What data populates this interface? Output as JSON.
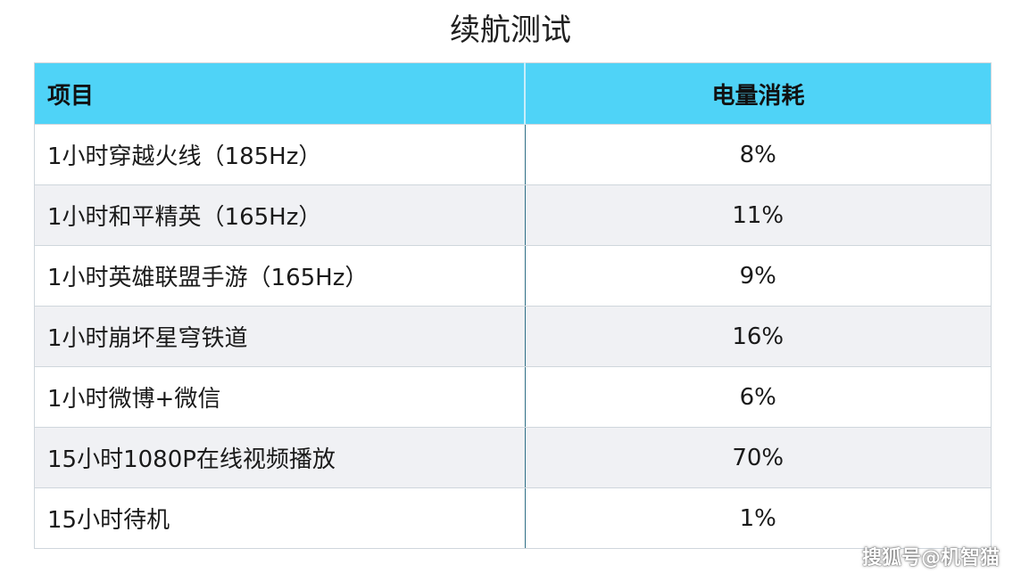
{
  "title": "续航测试",
  "table": {
    "headers": [
      "项目",
      "电量消耗"
    ],
    "rows": [
      {
        "item": "1小时穿越火线（185Hz）",
        "value": "8%"
      },
      {
        "item": "1小时和平精英（165Hz）",
        "value": "11%"
      },
      {
        "item": "1小时英雄联盟手游（165Hz）",
        "value": "9%"
      },
      {
        "item": "1小时崩坏星穹铁道",
        "value": "16%"
      },
      {
        "item": "1小时微博+微信",
        "value": "6%"
      },
      {
        "item": "15小时1080P在线视频播放",
        "value": "70%"
      },
      {
        "item": "15小时待机",
        "value": "1%"
      }
    ]
  },
  "watermark": "搜狐号@机智猫",
  "colors": {
    "header_background": "#4fd3f7",
    "stripe_background": "#f0f1f4"
  }
}
